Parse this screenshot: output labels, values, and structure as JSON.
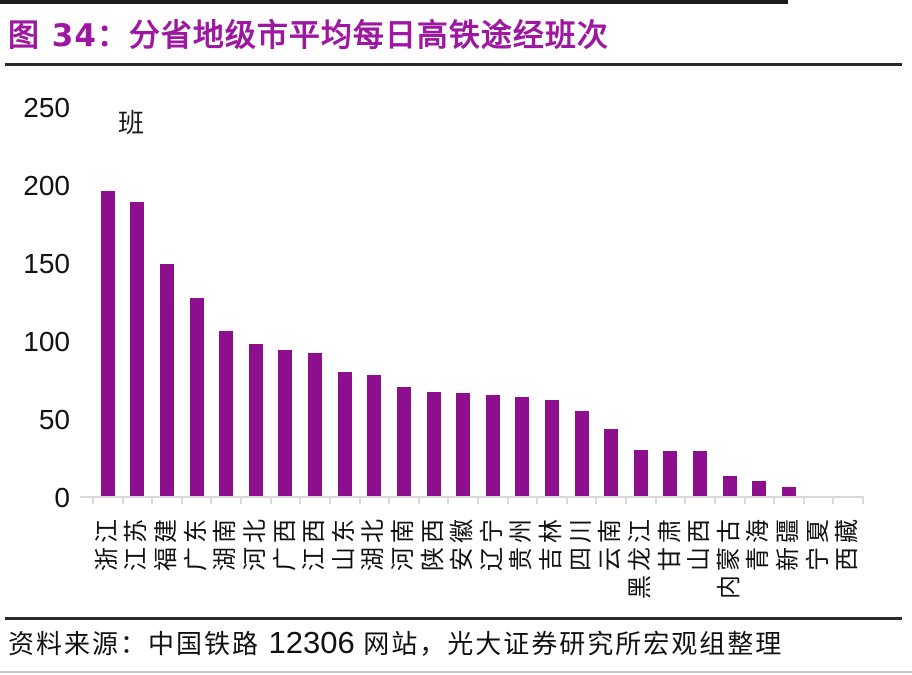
{
  "title": {
    "text": "图 34：分省地级市平均每日高铁途经班次",
    "color": "#9E17A0"
  },
  "chart_data": {
    "type": "bar",
    "title": "分省地级市平均每日高铁途经班次",
    "unit": "班",
    "categories": [
      "浙江",
      "江苏",
      "福建",
      "广东",
      "湖南",
      "河北",
      "广西",
      "江西",
      "山东",
      "湖北",
      "河南",
      "陕西",
      "安徽",
      "辽宁",
      "贵州",
      "吉林",
      "四川",
      "云南",
      "黑龙江",
      "甘肃",
      "山西",
      "内蒙古",
      "青海",
      "新疆",
      "宁夏",
      "西藏"
    ],
    "values": [
      197,
      190,
      150,
      128,
      107,
      99,
      95,
      93,
      81,
      79,
      71,
      68,
      67,
      66,
      65,
      63,
      56,
      44,
      31,
      30,
      30,
      14,
      11,
      7,
      0,
      0
    ],
    "xlabel": "",
    "ylabel": "班",
    "ylim": [
      0,
      250
    ],
    "yticks": [
      0,
      50,
      100,
      150,
      200,
      250
    ],
    "bar_color": "#8D0F8E",
    "axis_color": "#d9d9d9",
    "grid": false,
    "legend": "none"
  },
  "footer": {
    "source_prefix": "资料来源：中国铁路 ",
    "source_number": "12306",
    "source_suffix": " 网站，光大证券研究所宏观组整理"
  }
}
